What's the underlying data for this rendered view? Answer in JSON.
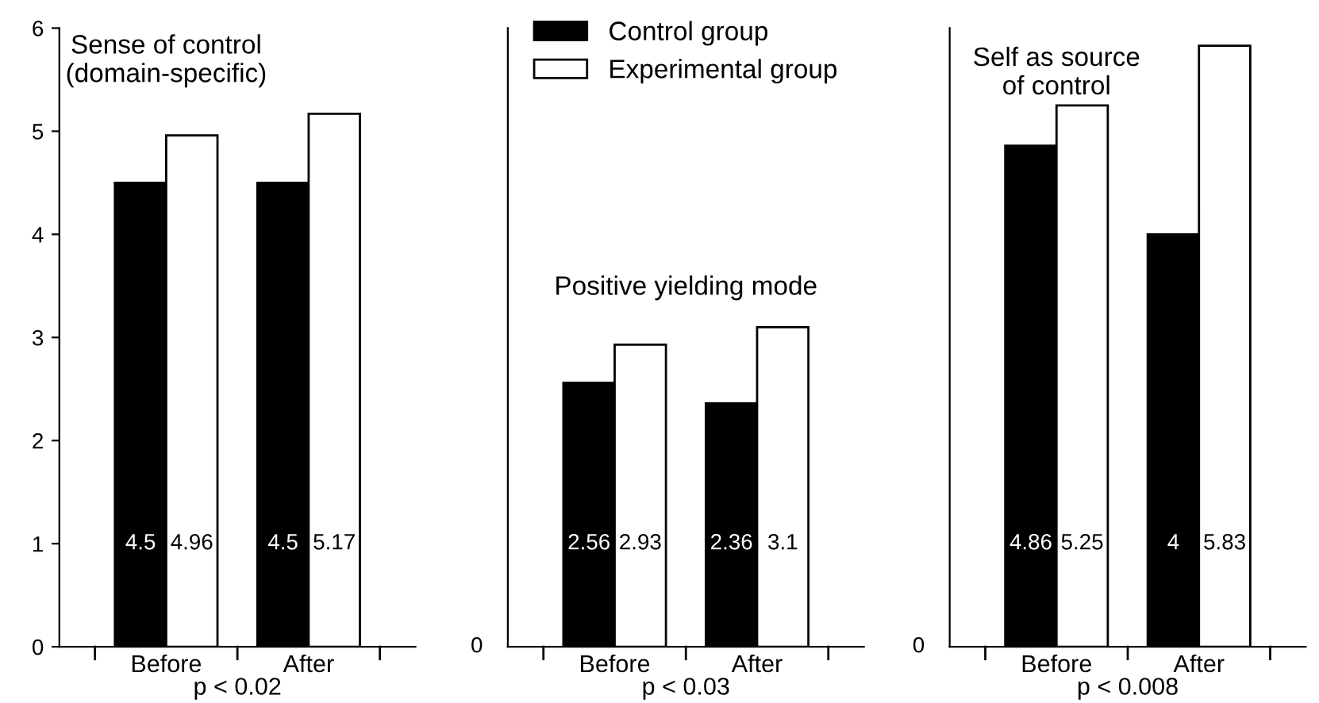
{
  "chart_data": [
    {
      "type": "bar",
      "title": "Sense of control\n(domain-specific)",
      "xlabel": "p < 0.02",
      "categories": [
        "Before",
        "After"
      ],
      "ylim": [
        0,
        6
      ],
      "yticks": [
        0,
        1,
        2,
        3,
        4,
        5,
        6
      ],
      "data_labels": true,
      "legend": false,
      "series": [
        {
          "color": "#000000",
          "values": [
            4.5,
            4.5
          ]
        },
        {
          "color": "#ffffff",
          "values": [
            4.96,
            5.17
          ]
        }
      ]
    },
    {
      "type": "bar",
      "title": "Positive yielding mode",
      "xlabel": "p < 0.03",
      "categories": [
        "Before",
        "After"
      ],
      "annotations": [
        "0"
      ],
      "data_labels": true,
      "legend": "top",
      "series": [
        {
          "name": "Control group",
          "color": "#000000",
          "values": [
            2.56,
            2.36
          ]
        },
        {
          "name": "Experimental group",
          "color": "#ffffff",
          "values": [
            2.93,
            3.1
          ]
        }
      ]
    },
    {
      "type": "bar",
      "title": "Self as source\nof control",
      "xlabel": "p < 0.008",
      "categories": [
        "Before",
        "After"
      ],
      "annotations": [
        "0"
      ],
      "data_labels": true,
      "legend": false,
      "series": [
        {
          "color": "#000000",
          "values": [
            4.86,
            4.0
          ]
        },
        {
          "color": "#ffffff",
          "values": [
            5.25,
            5.83
          ]
        }
      ]
    }
  ]
}
